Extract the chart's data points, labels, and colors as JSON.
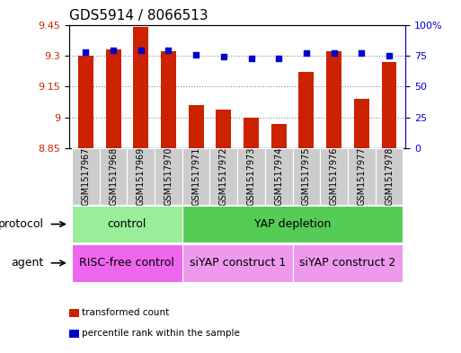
{
  "title": "GDS5914 / 8066513",
  "samples": [
    "GSM1517967",
    "GSM1517968",
    "GSM1517969",
    "GSM1517970",
    "GSM1517971",
    "GSM1517972",
    "GSM1517973",
    "GSM1517974",
    "GSM1517975",
    "GSM1517976",
    "GSM1517977",
    "GSM1517978"
  ],
  "transformed_count": [
    9.3,
    9.33,
    9.44,
    9.32,
    9.06,
    9.04,
    9.0,
    8.97,
    9.22,
    9.32,
    9.09,
    9.27
  ],
  "percentile_rank": [
    78,
    79,
    79,
    79,
    76,
    74,
    73,
    73,
    77,
    77,
    77,
    75
  ],
  "ylim_left": [
    8.85,
    9.45
  ],
  "ylim_right": [
    0,
    100
  ],
  "yticks_left": [
    8.85,
    9.0,
    9.15,
    9.3,
    9.45
  ],
  "yticks_right": [
    0,
    25,
    50,
    75,
    100
  ],
  "ytick_labels_left": [
    "8.85",
    "9",
    "9.15",
    "9.3",
    "9.45"
  ],
  "ytick_labels_right": [
    "0",
    "25",
    "50",
    "75",
    "100%"
  ],
  "bar_color": "#cc2200",
  "dot_color": "#0000cc",
  "bar_bottom": 8.85,
  "protocol_groups": [
    {
      "label": "control",
      "start": 0,
      "end": 3,
      "color": "#99ee99"
    },
    {
      "label": "YAP depletion",
      "start": 4,
      "end": 11,
      "color": "#55cc55"
    }
  ],
  "agent_groups": [
    {
      "label": "RISC-free control",
      "start": 0,
      "end": 3,
      "color": "#ee66ee"
    },
    {
      "label": "siYAP construct 1",
      "start": 4,
      "end": 7,
      "color": "#ee99ee"
    },
    {
      "label": "siYAP construct 2",
      "start": 8,
      "end": 11,
      "color": "#ee99ee"
    }
  ],
  "legend_items": [
    {
      "label": "transformed count",
      "color": "#cc2200"
    },
    {
      "label": "percentile rank within the sample",
      "color": "#0000cc"
    }
  ],
  "protocol_label": "protocol",
  "agent_label": "agent",
  "sample_bg_color": "#cccccc",
  "grid_color": "#888888",
  "tick_label_color_left": "#cc2200",
  "tick_label_color_right": "#0000cc",
  "title_fontsize": 11,
  "tick_fontsize": 8,
  "annotation_fontsize": 9,
  "sample_fontsize": 7
}
